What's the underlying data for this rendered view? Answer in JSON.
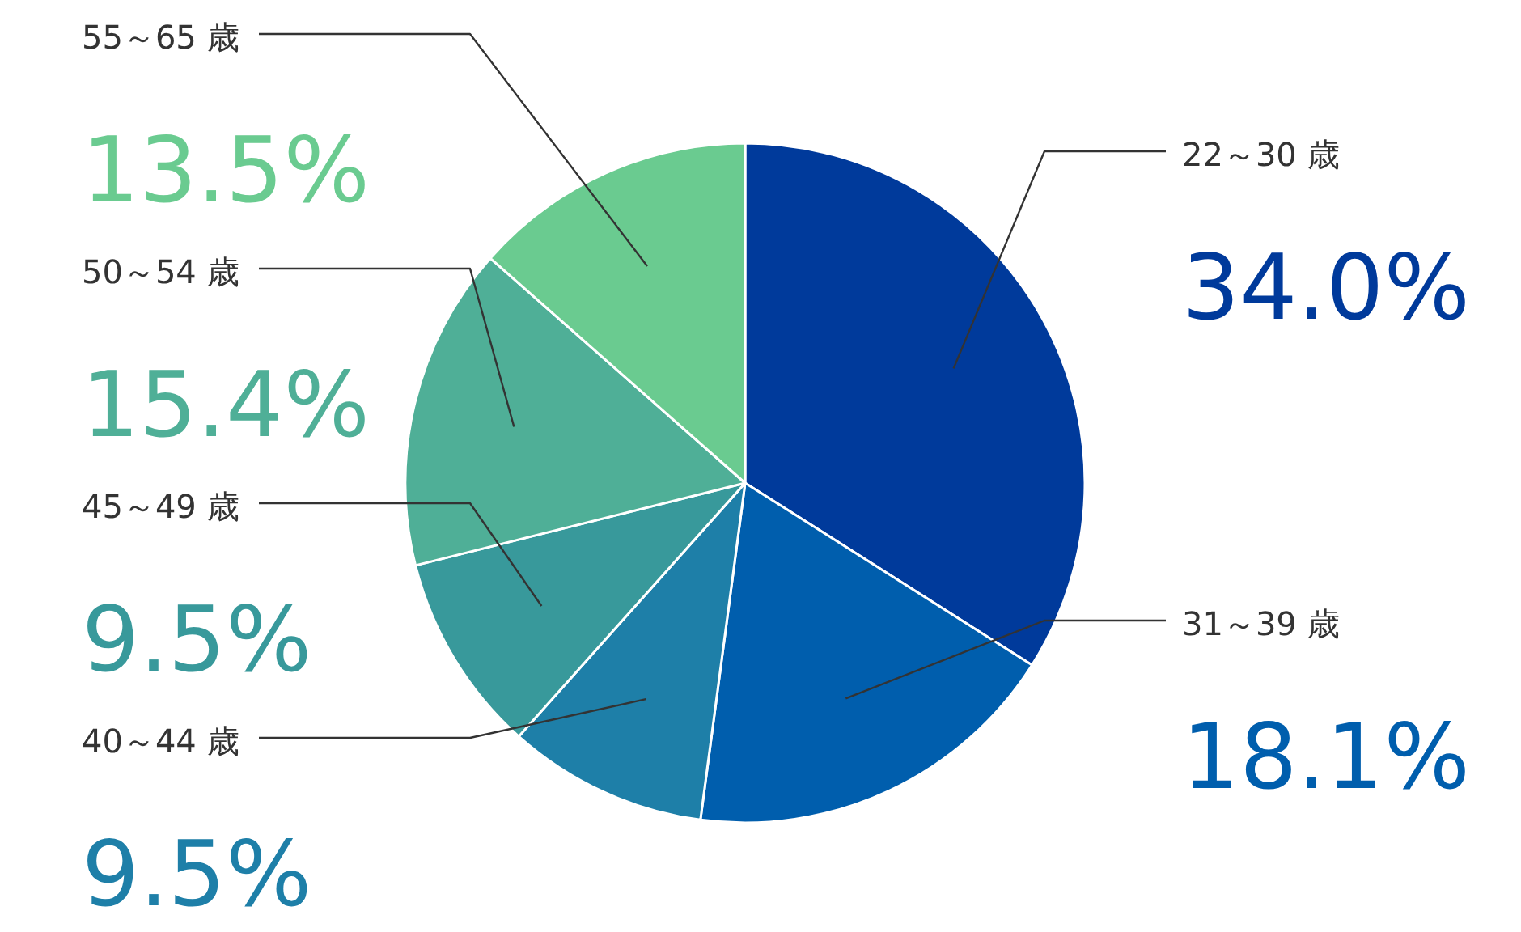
{
  "chart_data": {
    "type": "pie",
    "categories": [
      "22～30 歳",
      "31～39 歳",
      "40～44 歳",
      "45～49 歳",
      "50～54 歳",
      "55～65 歳"
    ],
    "values": [
      34.0,
      18.1,
      9.5,
      9.5,
      15.4,
      13.5
    ],
    "value_labels": [
      "34.0%",
      "18.1%",
      "9.5%",
      "9.5%",
      "15.4%",
      "13.5%"
    ],
    "colors": [
      "#003a9b",
      "#005ead",
      "#1e7fa8",
      "#38999b",
      "#4faf97",
      "#6acb90"
    ]
  }
}
